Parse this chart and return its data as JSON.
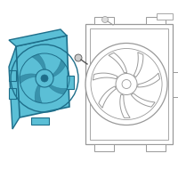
{
  "bg_color": "#ffffff",
  "shroud_fill": "#5bbfd6",
  "shroud_edge": "#1e6e8a",
  "outline_color": "#999999",
  "dark_outline": "#555555",
  "fig_size": [
    2.0,
    2.0
  ],
  "dpi": 100
}
